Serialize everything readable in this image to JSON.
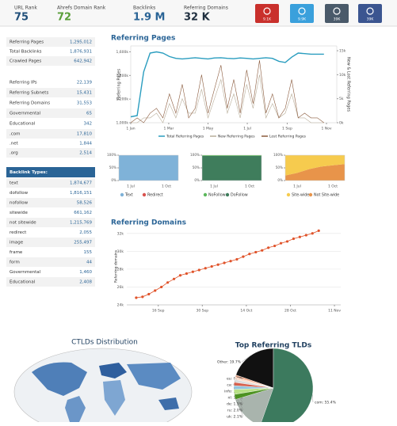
{
  "header": {
    "stats": [
      {
        "label": "URL Rank",
        "value": "75",
        "color": "#1f4e79"
      },
      {
        "label": "Ahrefs Domain Rank",
        "value": "72",
        "color": "#5a9e3a"
      },
      {
        "label": "Backlinks",
        "value": "1.9 M",
        "color": "#2a6496"
      },
      {
        "label": "Referring Domains",
        "value": "32 K",
        "color": "#1f2f3f"
      }
    ],
    "social": [
      {
        "count": "9.1K",
        "color": "#c9302c"
      },
      {
        "count": "9.9K",
        "color": "#3aa0dc"
      },
      {
        "count": "39K",
        "color": "#4a5a6a"
      },
      {
        "count": "39K",
        "color": "#3b5590"
      }
    ]
  },
  "sidebar": {
    "summary": [
      [
        "Referring Pages",
        "1,295,012"
      ],
      [
        "Total Backlinks",
        "1,876,931"
      ],
      [
        "Crawled Pages",
        "642,942"
      ],
      [
        "Referring IPs",
        "22,139"
      ],
      [
        "Referring Subnets",
        "15,431"
      ],
      [
        "Referring Domains",
        "31,553"
      ],
      [
        "Governmental",
        "65"
      ],
      [
        "Educational",
        "342"
      ],
      [
        ".com",
        "17,810"
      ],
      [
        ".net",
        "1,844"
      ],
      [
        ".org",
        "2,514"
      ]
    ],
    "backlink_types": {
      "title": "Backlink Types:",
      "rows": [
        [
          "text",
          "1,874,677"
        ],
        [
          "dofollow",
          "1,816,151"
        ],
        [
          "nofollow",
          "58,526"
        ],
        [
          "sitewide",
          "661,162"
        ],
        [
          "not sitewide",
          "1,215,769"
        ],
        [
          "redirect",
          "2,055"
        ],
        [
          "image",
          "255,497"
        ],
        [
          "frame",
          "155"
        ],
        [
          "form",
          "44"
        ],
        [
          "Governmental",
          "1,460"
        ],
        [
          "Educational",
          "2,408"
        ]
      ]
    }
  },
  "chart_data": [
    {
      "type": "line",
      "title": "Referring Pages",
      "y_label": "Referring Pages",
      "y2_label": "New & Lost Referring Pages",
      "x": [
        0,
        10,
        20,
        30,
        40,
        50,
        60,
        70,
        80,
        90,
        100,
        110,
        120,
        130,
        140,
        150,
        160,
        170,
        180,
        190,
        200,
        210,
        220,
        230,
        240,
        250,
        260,
        270,
        280,
        290,
        300
      ],
      "xlim": [
        0,
        320
      ],
      "xticks": [
        {
          "value": 0,
          "label": "1 Jan"
        },
        {
          "value": 59,
          "label": "1 Mar"
        },
        {
          "value": 120,
          "label": "1 May"
        },
        {
          "value": 181,
          "label": "1 Jul"
        },
        {
          "value": 243,
          "label": "1 Sep"
        },
        {
          "value": 304,
          "label": "1 Nov"
        }
      ],
      "ylim": [
        1000,
        1650
      ],
      "yticks": [
        {
          "value": 1000,
          "label": "1,000k"
        },
        {
          "value": 1200,
          "label": "1,200k"
        },
        {
          "value": 1400,
          "label": "1,400k"
        },
        {
          "value": 1600,
          "label": "1,600k"
        }
      ],
      "y2lim": [
        0,
        16
      ],
      "y2ticks": [
        {
          "value": 0,
          "label": "0k"
        },
        {
          "value": 5,
          "label": "5k"
        },
        {
          "value": 10,
          "label": "10k"
        },
        {
          "value": 15,
          "label": "15k"
        }
      ],
      "series": [
        {
          "name": "Total Referring Pages",
          "color": "#2a9dbf",
          "values": [
            1050,
            1060,
            1430,
            1590,
            1600,
            1590,
            1560,
            1545,
            1540,
            1545,
            1550,
            1545,
            1540,
            1548,
            1550,
            1545,
            1542,
            1548,
            1545,
            1540,
            1545,
            1550,
            1545,
            1520,
            1510,
            1555,
            1590,
            1585,
            1580,
            1580,
            1580
          ]
        },
        {
          "name": "New Referring Pages",
          "color": "#b9ae9a",
          "axis": "y2",
          "values": [
            0,
            0,
            1,
            1,
            2,
            0,
            4,
            1,
            5,
            2,
            2,
            7,
            1,
            5,
            9,
            2,
            6,
            1,
            8,
            3,
            10,
            1,
            4,
            1,
            2,
            6,
            1,
            1,
            0,
            0,
            0
          ]
        },
        {
          "name": "Lost Referring Pages",
          "color": "#8a5a3c",
          "axis": "y2",
          "values": [
            0,
            1,
            0,
            2,
            3,
            1,
            6,
            2,
            8,
            1,
            3,
            10,
            2,
            7,
            12,
            3,
            9,
            2,
            11,
            4,
            13,
            2,
            6,
            1,
            3,
            9,
            1,
            2,
            1,
            1,
            0
          ]
        }
      ]
    },
    {
      "type": "area",
      "categories": [
        null,
        "1 Jul",
        null,
        null,
        "1 Oct",
        null
      ],
      "ylim": [
        0,
        100
      ],
      "yticks": [
        {
          "value": 0,
          "label": "0%"
        },
        {
          "value": 50,
          "label": "50%"
        },
        {
          "value": 100,
          "label": "100%"
        }
      ],
      "series": [
        {
          "name": "Text",
          "color": "#7fb2d8",
          "values": [
            100,
            100,
            100,
            100,
            100,
            100
          ]
        },
        {
          "name": "Redirect",
          "color": "#d9534f",
          "values": [
            0,
            0,
            0,
            0,
            0,
            0
          ]
        }
      ]
    },
    {
      "type": "area",
      "categories": [
        null,
        "1 Jul",
        null,
        null,
        "1 Oct",
        null
      ],
      "ylim": [
        0,
        100
      ],
      "yticks": [
        {
          "value": 0,
          "label": "0%"
        },
        {
          "value": 50,
          "label": "50%"
        },
        {
          "value": 100,
          "label": "100%"
        }
      ],
      "series": [
        {
          "name": "NoFollow",
          "color": "#5cb85c",
          "values": [
            3,
            3,
            3,
            3,
            3,
            3
          ]
        },
        {
          "name": "DoFollow",
          "color": "#3f7d5c",
          "values": [
            97,
            97,
            97,
            97,
            97,
            97
          ]
        }
      ]
    },
    {
      "type": "area",
      "categories": [
        null,
        "1 Jul",
        null,
        null,
        "1 Oct",
        null
      ],
      "ylim": [
        0,
        100
      ],
      "yticks": [
        {
          "value": 0,
          "label": "0%"
        },
        {
          "value": 50,
          "label": "50%"
        },
        {
          "value": 100,
          "label": "100%"
        }
      ],
      "series": [
        {
          "name": "Site-wide",
          "color": "#f6cb4e",
          "values": [
            80,
            70,
            55,
            45,
            40,
            35
          ]
        },
        {
          "name": "Not Site-wide",
          "color": "#e8944a",
          "values": [
            20,
            30,
            45,
            55,
            60,
            65
          ]
        }
      ]
    },
    {
      "type": "scatter-line",
      "title": "Referring Domains",
      "y_label": "Referring domains",
      "color": "#e0532a",
      "grid": true,
      "x": [
        8,
        10,
        12,
        14,
        16,
        18,
        20,
        22,
        24,
        26,
        28,
        30,
        32,
        34,
        36,
        38,
        40,
        42,
        44,
        46,
        48,
        50,
        52,
        54,
        56,
        58,
        60,
        62,
        64,
        66
      ],
      "xlim": [
        5,
        73
      ],
      "xticks": [
        {
          "value": 15,
          "label": "16 Sep"
        },
        {
          "value": 29,
          "label": "30 Sep"
        },
        {
          "value": 43,
          "label": "14 Oct"
        },
        {
          "value": 57,
          "label": "28 Oct"
        },
        {
          "value": 71,
          "label": "11 Nov"
        }
      ],
      "ylim": [
        24,
        32.6
      ],
      "yticks": [
        {
          "value": 24,
          "label": "24k"
        },
        {
          "value": 26,
          "label": "26k"
        },
        {
          "value": 28,
          "label": "28k"
        },
        {
          "value": 30,
          "label": "30k"
        },
        {
          "value": 32,
          "label": "32k"
        }
      ],
      "values": [
        24.8,
        24.9,
        25.2,
        25.6,
        26.0,
        26.5,
        26.9,
        27.3,
        27.5,
        27.7,
        27.9,
        28.1,
        28.3,
        28.5,
        28.7,
        28.9,
        29.1,
        29.4,
        29.7,
        29.9,
        30.1,
        30.4,
        30.6,
        30.9,
        31.1,
        31.4,
        31.6,
        31.8,
        32.0,
        32.3
      ]
    },
    {
      "type": "pie",
      "title": "Top Referring TLDs",
      "values": [
        19.7,
        0.9,
        0.9,
        1.2,
        1.4,
        1.5,
        2.0,
        2.1,
        55.4
      ],
      "value_labels": [
        "Other: 19.7%",
        "eu: 0.9%",
        "ca: 0.9%",
        "info: 1.2%",
        "nl: 1.4%",
        "de: 1.5%",
        "ru: 2.0%",
        "uk: 2.1%",
        "com: 55.4%"
      ],
      "colors": [
        "#111111",
        "#f4a582",
        "#fddbc7",
        "#dddddd",
        "#d6604d",
        "#92c5de",
        "#b8e186",
        "#4d9221",
        "#3c7a5e"
      ]
    }
  ],
  "map": {
    "title": "CTLDs Distribution"
  }
}
